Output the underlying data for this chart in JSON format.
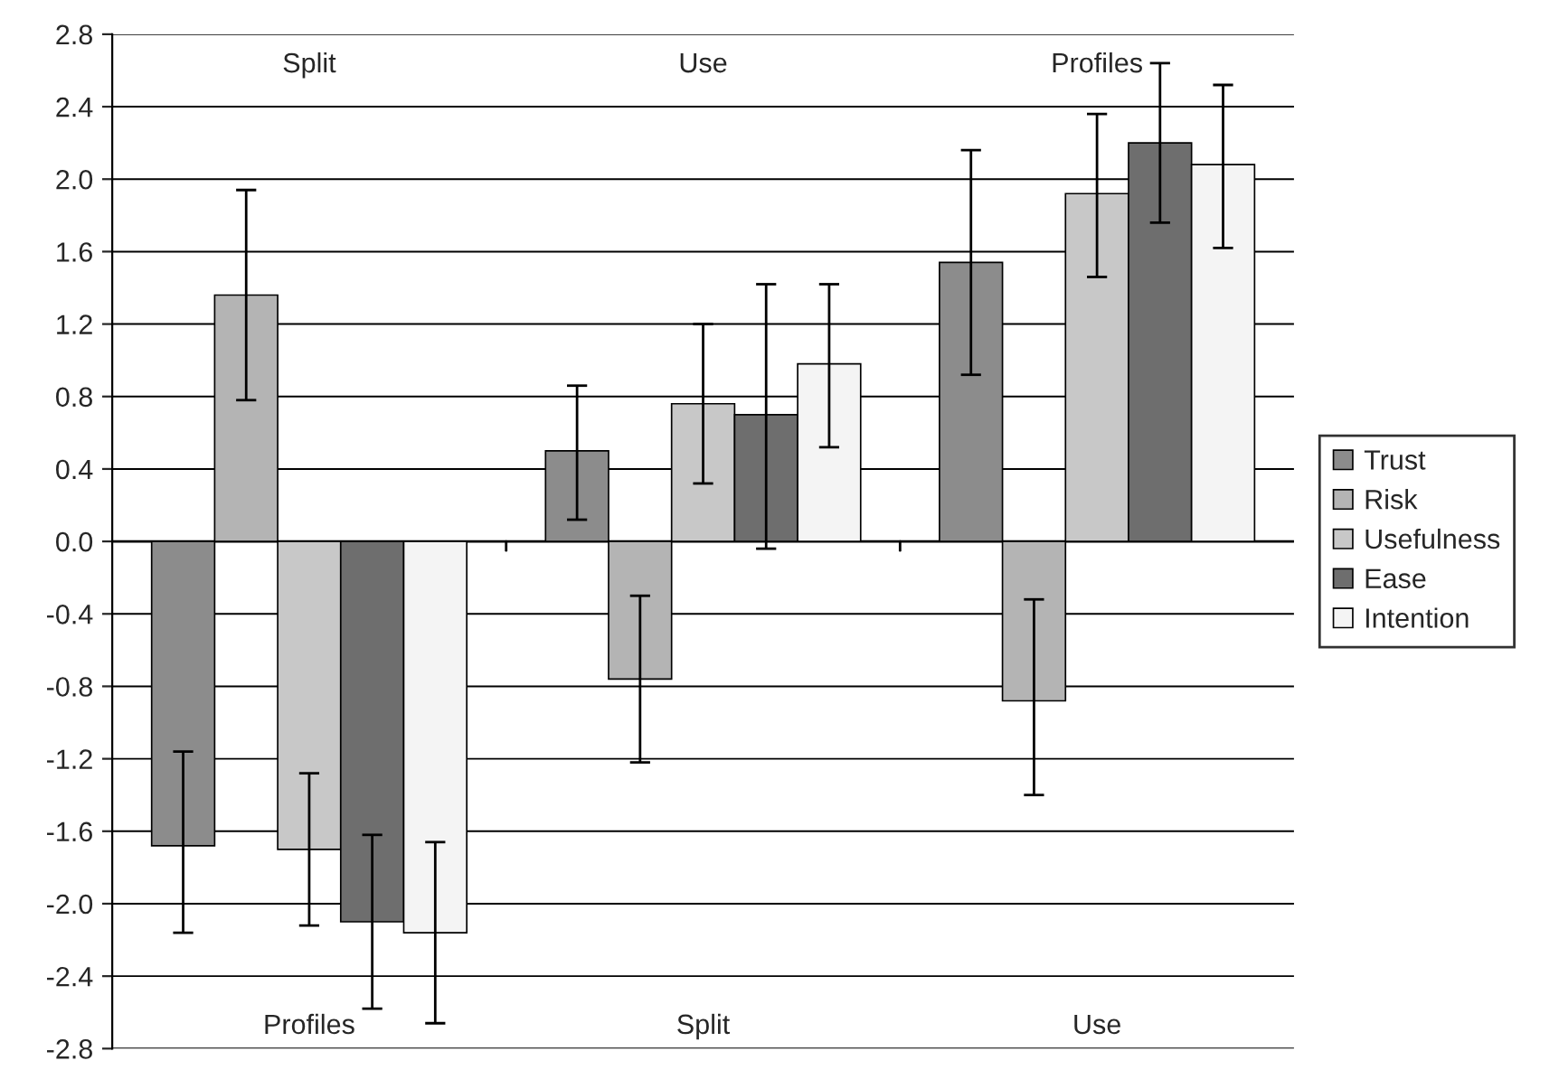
{
  "chart_data": {
    "type": "bar",
    "categories": [
      null,
      null,
      null
    ],
    "series": [
      {
        "name": "Trust",
        "color": "#8c8c8c",
        "values": [
          -1.68,
          0.5,
          1.54
        ],
        "errors": [
          [
            -2.16,
            -1.16
          ],
          [
            0.12,
            0.86
          ],
          [
            0.92,
            2.16
          ]
        ]
      },
      {
        "name": "Risk",
        "color": "#b4b4b4",
        "values": [
          1.36,
          -0.76,
          -0.88
        ],
        "errors": [
          [
            0.78,
            1.94
          ],
          [
            -1.22,
            -0.3
          ],
          [
            -1.4,
            -0.32
          ]
        ]
      },
      {
        "name": "Usefulness",
        "color": "#c8c8c8",
        "values": [
          -1.7,
          0.76,
          1.92
        ],
        "errors": [
          [
            -2.12,
            -1.28
          ],
          [
            0.32,
            1.2
          ],
          [
            1.46,
            2.36
          ]
        ]
      },
      {
        "name": "Ease",
        "color": "#6e6e6e",
        "values": [
          -2.1,
          0.7,
          2.2
        ],
        "errors": [
          [
            -2.58,
            -1.62
          ],
          [
            -0.04,
            1.42
          ],
          [
            1.76,
            2.64
          ]
        ]
      },
      {
        "name": "Intention",
        "color": "#f4f4f4",
        "values": [
          -2.16,
          0.98,
          2.08
        ],
        "errors": [
          [
            -2.66,
            -1.66
          ],
          [
            0.52,
            1.42
          ],
          [
            1.62,
            2.52
          ]
        ]
      }
    ],
    "ylim": [
      -2.8,
      2.8
    ],
    "yticks": [
      {
        "value": -2.8,
        "label": "-2.8"
      },
      {
        "value": -2.4,
        "label": "-2.4"
      },
      {
        "value": -2,
        "label": "-2.0"
      },
      {
        "value": -1.6,
        "label": "-1.6"
      },
      {
        "value": -1.2,
        "label": "-1.2"
      },
      {
        "value": -0.8,
        "label": "-0.8"
      },
      {
        "value": -0.4,
        "label": "-0.4"
      },
      {
        "value": 0,
        "label": "0.0"
      },
      {
        "value": 0.4,
        "label": "0.4"
      },
      {
        "value": 0.8,
        "label": "0.8"
      },
      {
        "value": 1.2,
        "label": "1.2"
      },
      {
        "value": 1.6,
        "label": "1.6"
      },
      {
        "value": 2,
        "label": "2.0"
      },
      {
        "value": 2.4,
        "label": "2.4"
      },
      {
        "value": 2.8,
        "label": "2.8"
      }
    ],
    "grid": "y",
    "legend": "right",
    "annotations": [
      "Split",
      "Use",
      "Profiles",
      "Profiles",
      "Split",
      "Use"
    ]
  }
}
